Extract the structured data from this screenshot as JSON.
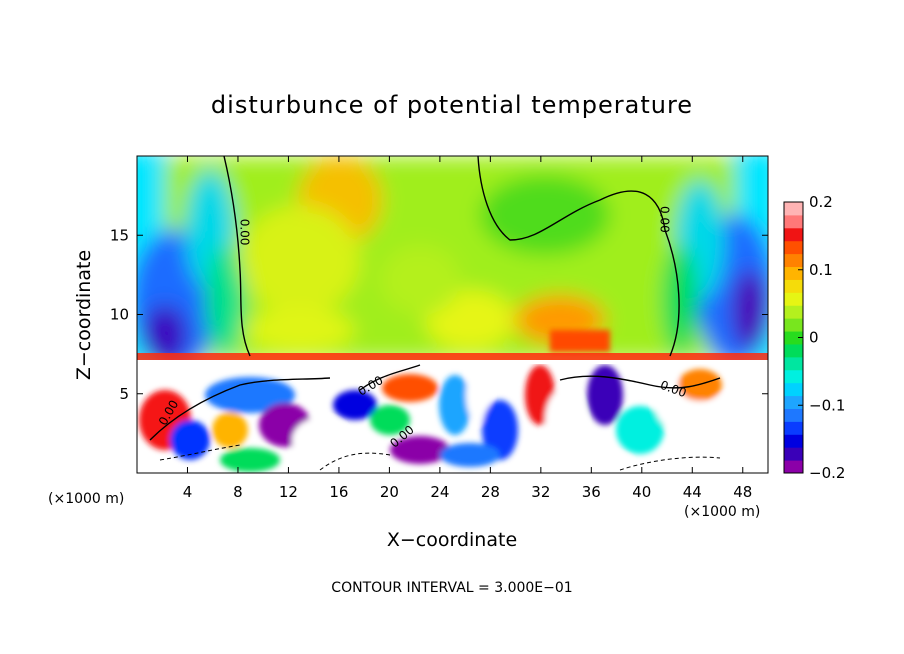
{
  "chart_data": {
    "type": "heatmap",
    "title": "disturbunce of potential temperature",
    "xlabel": "X−coordinate",
    "ylabel": "Z−coordinate",
    "x_unit_left": "(×1000 m)",
    "x_unit_right": "(×1000 m)",
    "xlim": [
      0,
      50
    ],
    "ylim": [
      0,
      20
    ],
    "x_ticks": [
      {
        "value": 4,
        "label": "4"
      },
      {
        "value": 8,
        "label": "8"
      },
      {
        "value": 12,
        "label": "12"
      },
      {
        "value": 16,
        "label": "16"
      },
      {
        "value": 20,
        "label": "20"
      },
      {
        "value": 24,
        "label": "24"
      },
      {
        "value": 28,
        "label": "28"
      },
      {
        "value": 32,
        "label": "32"
      },
      {
        "value": 36,
        "label": "36"
      },
      {
        "value": 40,
        "label": "40"
      },
      {
        "value": 44,
        "label": "44"
      },
      {
        "value": 48,
        "label": "48"
      }
    ],
    "y_ticks": [
      {
        "value": 5,
        "label": "5"
      },
      {
        "value": 10,
        "label": "10"
      },
      {
        "value": 15,
        "label": "15"
      }
    ],
    "colorbar": {
      "range": [
        -0.2,
        0.2
      ],
      "ticks": [
        {
          "value": 0.2,
          "label": "0.2"
        },
        {
          "value": 0.1,
          "label": "0.1"
        },
        {
          "value": 0,
          "label": "0"
        },
        {
          "value": -0.1,
          "label": "−0.1"
        },
        {
          "value": -0.2,
          "label": "−0.2"
        }
      ],
      "colors": [
        "#8b00a8",
        "#3a00b8",
        "#0000e0",
        "#0a3cff",
        "#1e78ff",
        "#1ea5ff",
        "#00d2ff",
        "#00f0e0",
        "#00e6a0",
        "#00dc5a",
        "#28dc1e",
        "#78e61e",
        "#b4f01e",
        "#e6f514",
        "#f5dc0a",
        "#ffb400",
        "#ff8200",
        "#ff5000",
        "#f01414",
        "#ff7878",
        "#ffb4b4"
      ]
    },
    "contour_labels": [
      {
        "x": 8.5,
        "z": 15.2,
        "text": "0.00",
        "rotate": 90
      },
      {
        "x": 41.8,
        "z": 16.0,
        "text": "0.00",
        "rotate": 90
      },
      {
        "x": 2.5,
        "z": 3.8,
        "text": "0.00",
        "rotate": -60
      },
      {
        "x": 18.5,
        "z": 5.5,
        "text": "0.00",
        "rotate": -30
      },
      {
        "x": 21.0,
        "z": 2.3,
        "text": "0.00",
        "rotate": -40
      },
      {
        "x": 42.5,
        "z": 5.3,
        "text": "0.00",
        "rotate": 20
      }
    ],
    "annotation": "CONTOUR INTERVAL = 3.000E−01",
    "grid": false,
    "legend": "right colorbar"
  }
}
